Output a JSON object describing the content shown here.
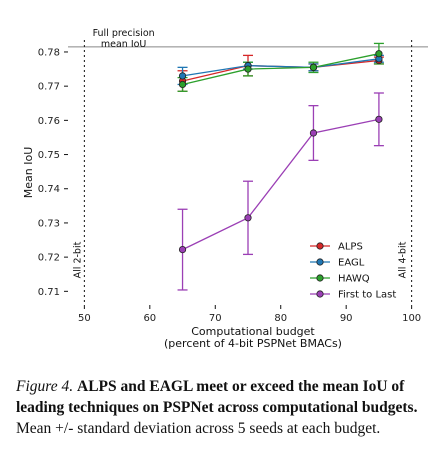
{
  "chart_data": {
    "type": "line",
    "xlabel": [
      "Computational budget",
      "(percent of 4-bit PSPNet BMACs)"
    ],
    "ylabel": "Mean IoU",
    "xlim": [
      47.5,
      102.5
    ],
    "ylim": [
      0.706,
      0.7835
    ],
    "xticks": [
      50,
      60,
      70,
      80,
      90,
      100
    ],
    "yticks": [
      0.71,
      0.72,
      0.73,
      0.74,
      0.75,
      0.76,
      0.77,
      0.78
    ],
    "ytick_labels": [
      "0.71",
      "0.72",
      "0.73",
      "0.74",
      "0.75",
      "0.76",
      "0.77",
      "0.78"
    ],
    "xtick_labels": [
      "50",
      "60",
      "70",
      "80",
      "90",
      "100"
    ],
    "reference_line": {
      "y": 0.7815,
      "label": [
        "Full precision",
        "mean IoU"
      ]
    },
    "vertical_markers": [
      {
        "x": 50,
        "label": "All 2-bit"
      },
      {
        "x": 100,
        "label": "All 4-bit"
      }
    ],
    "legend_position": "lower-right",
    "series": [
      {
        "name": "ALPS",
        "color": "#d62728",
        "x": [
          65,
          75,
          85,
          95
        ],
        "y": [
          0.7715,
          0.776,
          0.7755,
          0.7775
        ],
        "err": [
          0.003,
          0.003,
          0.001,
          0.001
        ]
      },
      {
        "name": "EAGL",
        "color": "#1f77b4",
        "x": [
          65,
          75,
          85,
          95
        ],
        "y": [
          0.773,
          0.776,
          0.7755,
          0.778
        ],
        "err": [
          0.0025,
          0.001,
          0.001,
          0.001
        ]
      },
      {
        "name": "HAWQ",
        "color": "#2ca02c",
        "x": [
          65,
          75,
          85,
          95
        ],
        "y": [
          0.7705,
          0.775,
          0.7755,
          0.7795
        ],
        "err": [
          0.002,
          0.002,
          0.0015,
          0.003
        ]
      },
      {
        "name": "First to Last",
        "color": "#9b3fb5",
        "x": [
          65,
          75,
          85,
          95
        ],
        "y": [
          0.7222,
          0.7315,
          0.7563,
          0.7603
        ],
        "err": [
          0.0118,
          0.0107,
          0.008,
          0.0077
        ]
      }
    ]
  },
  "caption": {
    "label": "Figure 4.",
    "bold": "ALPS and EAGL meet or exceed the mean IoU of leading techniques on PSPNet across computational budgets.",
    "text": "Mean +/- standard deviation across 5 seeds at each budget."
  }
}
